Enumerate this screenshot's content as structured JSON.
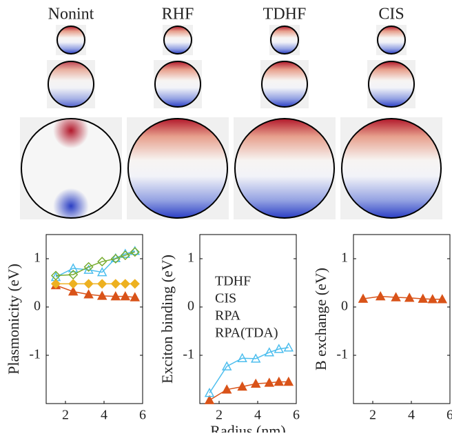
{
  "image_grid": {
    "columns": [
      "Nonint",
      "RHF",
      "TDHF",
      "CIS"
    ]
  },
  "chart_data": [
    {
      "type": "line",
      "ylabel": "Plasmonicity (eV)",
      "xlim": [
        1,
        6
      ],
      "xticks": [
        2,
        4,
        6
      ],
      "ylim": [
        -2,
        1.5
      ],
      "yticks": [
        -1,
        0,
        1
      ],
      "x": [
        1.5,
        2.4,
        3.2,
        3.9,
        4.6,
        5.1,
        5.6
      ],
      "series": [
        {
          "name": "TDHF",
          "color": "#d95319",
          "marker": "triangle",
          "filled": true,
          "values": [
            0.45,
            0.32,
            0.26,
            0.23,
            0.22,
            0.22,
            0.2
          ]
        },
        {
          "name": "CIS",
          "color": "#4dbeee",
          "marker": "triangle",
          "filled": false,
          "values": [
            0.62,
            0.8,
            0.77,
            0.72,
            1.01,
            1.1,
            1.16
          ]
        },
        {
          "name": "RPA",
          "color": "#edb120",
          "marker": "diamond",
          "filled": true,
          "values": [
            0.48,
            0.48,
            0.48,
            0.48,
            0.48,
            0.48,
            0.48
          ]
        },
        {
          "name": "RPA(TDA)",
          "color": "#77ac30",
          "marker": "diamond",
          "filled": false,
          "values": [
            0.65,
            0.67,
            0.83,
            0.94,
            1.0,
            1.07,
            1.14
          ]
        }
      ]
    },
    {
      "type": "line",
      "ylabel": "Exciton binding (eV)",
      "xlabel": "Radius (nm)",
      "xlim": [
        1,
        6
      ],
      "xticks": [
        2,
        4,
        6
      ],
      "ylim": [
        -2,
        1.5
      ],
      "yticks": [
        -1,
        0,
        1
      ],
      "x": [
        1.5,
        2.4,
        3.2,
        3.9,
        4.6,
        5.1,
        5.6
      ],
      "series": [
        {
          "name": "TDHF",
          "color": "#d95319",
          "marker": "triangle",
          "filled": true,
          "values": [
            -1.93,
            -1.71,
            -1.65,
            -1.59,
            -1.57,
            -1.55,
            -1.55
          ]
        },
        {
          "name": "CIS",
          "color": "#4dbeee",
          "marker": "triangle",
          "filled": false,
          "values": [
            -1.78,
            -1.23,
            -1.06,
            -1.07,
            -0.94,
            -0.87,
            -0.84
          ]
        }
      ]
    },
    {
      "type": "line",
      "ylabel": "B exchange (eV)",
      "xlim": [
        1,
        6
      ],
      "xticks": [
        2,
        4,
        6
      ],
      "ylim": [
        -2,
        1.5
      ],
      "yticks": [
        -1,
        0,
        1
      ],
      "x": [
        1.5,
        2.4,
        3.2,
        3.9,
        4.6,
        5.1,
        5.6
      ],
      "series": [
        {
          "name": "TDHF",
          "color": "#d95319",
          "marker": "triangle",
          "filled": true,
          "values": [
            0.17,
            0.22,
            0.2,
            0.19,
            0.17,
            0.16,
            0.16
          ]
        }
      ]
    }
  ]
}
